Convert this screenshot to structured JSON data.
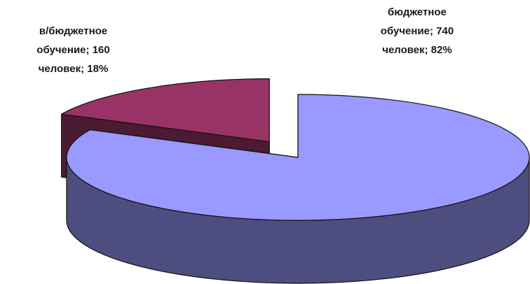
{
  "chart_data": {
    "type": "pie",
    "title": "",
    "subtitle": "",
    "style": "3d-exploded",
    "legend": "none",
    "categories": [
      "в/бюджетное обучение",
      "бюджетное обучение"
    ],
    "values": [
      160,
      740
    ],
    "percents": [
      18,
      82
    ],
    "units": "человек",
    "colors": {
      "top": [
        "#993366",
        "#9999ff"
      ],
      "side": [
        "#4d1a33",
        "#4d4d80"
      ]
    },
    "data_labels": [
      {
        "series": "в/бюджетное обучение",
        "lines": [
          "в/бюджетное",
          "обучение; 160",
          "человек; 18%"
        ]
      },
      {
        "series": "бюджетное обучение",
        "lines": [
          "бюджетное",
          "обучение; 740",
          "человек; 82%"
        ]
      }
    ]
  }
}
